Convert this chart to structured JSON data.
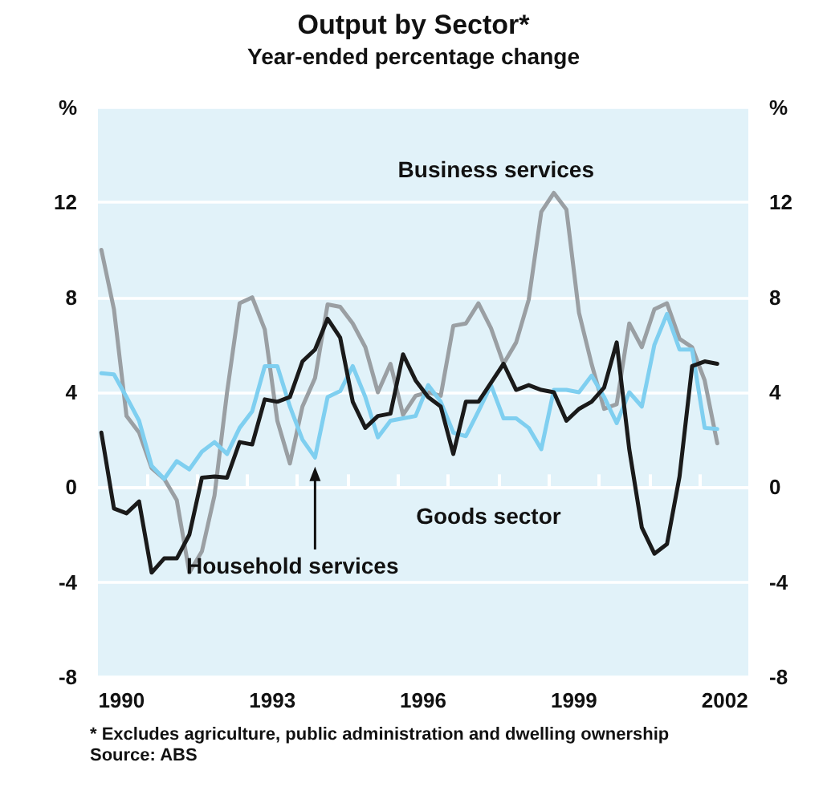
{
  "chart_data": {
    "type": "line",
    "title": "Output by Sector*",
    "subtitle": "Year-ended percentage change",
    "annotations": [
      "* Excludes agriculture, public administration and dwelling ownership",
      "Source: ABS"
    ],
    "x": [
      1990.1,
      1990.35,
      1990.6,
      1990.85,
      1991.1,
      1991.35,
      1991.6,
      1991.85,
      1992.1,
      1992.35,
      1992.6,
      1992.85,
      1993.1,
      1993.35,
      1993.6,
      1993.85,
      1994.1,
      1994.35,
      1994.6,
      1994.85,
      1995.1,
      1995.35,
      1995.6,
      1995.85,
      1996.1,
      1996.35,
      1996.6,
      1996.85,
      1997.1,
      1997.35,
      1997.6,
      1997.85,
      1998.1,
      1998.35,
      1998.6,
      1998.85,
      1999.1,
      1999.35,
      1999.6,
      1999.85,
      2000.1,
      2000.35,
      2000.6,
      2000.85,
      2001.1,
      2001.35,
      2001.6,
      2001.85,
      2002.1,
      2002.35
    ],
    "series": [
      {
        "name": "Business services",
        "color": "#9a9fa3",
        "values": [
          10.0,
          7.5,
          3.0,
          2.3,
          0.8,
          0.35,
          -0.55,
          -3.6,
          -2.7,
          -0.35,
          4.0,
          7.75,
          8.0,
          6.65,
          2.8,
          1.0,
          3.4,
          4.6,
          7.7,
          7.6,
          6.9,
          5.9,
          4.0,
          5.2,
          3.05,
          3.85,
          4.0,
          3.85,
          6.8,
          6.9,
          7.75,
          6.7,
          5.2,
          6.1,
          7.9,
          11.6,
          12.4,
          11.7,
          7.35,
          5.2,
          3.3,
          3.5,
          6.9,
          5.9,
          7.5,
          7.75,
          6.25,
          5.9,
          4.5,
          1.85
        ]
      },
      {
        "name": "Household services",
        "color": "#7fcff0",
        "values": [
          4.8,
          4.75,
          3.8,
          2.8,
          0.9,
          0.35,
          1.1,
          0.75,
          1.5,
          1.9,
          1.4,
          2.5,
          3.2,
          5.1,
          5.1,
          3.4,
          2.0,
          1.25,
          3.8,
          4.05,
          5.1,
          3.8,
          2.1,
          2.8,
          2.9,
          3.0,
          4.3,
          3.6,
          2.3,
          2.15,
          3.2,
          4.3,
          2.9,
          2.9,
          2.5,
          1.6,
          4.1,
          4.1,
          4.0,
          4.7,
          3.8,
          2.7,
          4.0,
          3.4,
          6.0,
          7.3,
          5.8,
          5.8,
          2.5,
          2.45
        ]
      },
      {
        "name": "Goods sector",
        "color": "#1a1a1a",
        "values": [
          2.3,
          -0.9,
          -1.1,
          -0.6,
          -3.6,
          -3.0,
          -3.0,
          -2.0,
          0.4,
          0.45,
          0.4,
          1.9,
          1.8,
          3.7,
          3.6,
          3.8,
          5.3,
          5.8,
          7.1,
          6.3,
          3.6,
          2.5,
          3.0,
          3.1,
          5.6,
          4.5,
          3.8,
          3.4,
          1.4,
          3.6,
          3.6,
          4.4,
          5.2,
          4.1,
          4.3,
          4.1,
          4.0,
          2.8,
          3.3,
          3.6,
          4.2,
          6.1,
          1.6,
          -1.7,
          -2.8,
          -2.4,
          0.45,
          5.1,
          5.3,
          5.2
        ]
      }
    ],
    "xlim": [
      1990,
      2003
    ],
    "xticks": [
      {
        "value": 1990.5,
        "label": "1990"
      },
      {
        "value": 1991,
        "label": null
      },
      {
        "value": 1992,
        "label": null
      },
      {
        "value": 1993,
        "label": null
      },
      {
        "value": 1993.5,
        "label": "1993"
      },
      {
        "value": 1994,
        "label": null
      },
      {
        "value": 1995,
        "label": null
      },
      {
        "value": 1996,
        "label": null
      },
      {
        "value": 1996.5,
        "label": "1996"
      },
      {
        "value": 1997,
        "label": null
      },
      {
        "value": 1998,
        "label": null
      },
      {
        "value": 1999,
        "label": null
      },
      {
        "value": 1999.5,
        "label": "1999"
      },
      {
        "value": 2000,
        "label": null
      },
      {
        "value": 2001,
        "label": null
      },
      {
        "value": 2002,
        "label": null
      },
      {
        "value": 2002.5,
        "label": "2002"
      }
    ],
    "ylim": [
      -8,
      16
    ],
    "yticks": [
      -8,
      -4,
      0,
      4,
      8,
      12,
      {
        "value": 16,
        "label": "%"
      }
    ],
    "y2lim": [
      -8,
      16
    ],
    "y2ticks": [
      -8,
      -4,
      0,
      4,
      8,
      12,
      {
        "value": 16,
        "label": "%"
      }
    ],
    "grid": "y",
    "legend": false,
    "marker": "none",
    "line_style": "solid"
  }
}
